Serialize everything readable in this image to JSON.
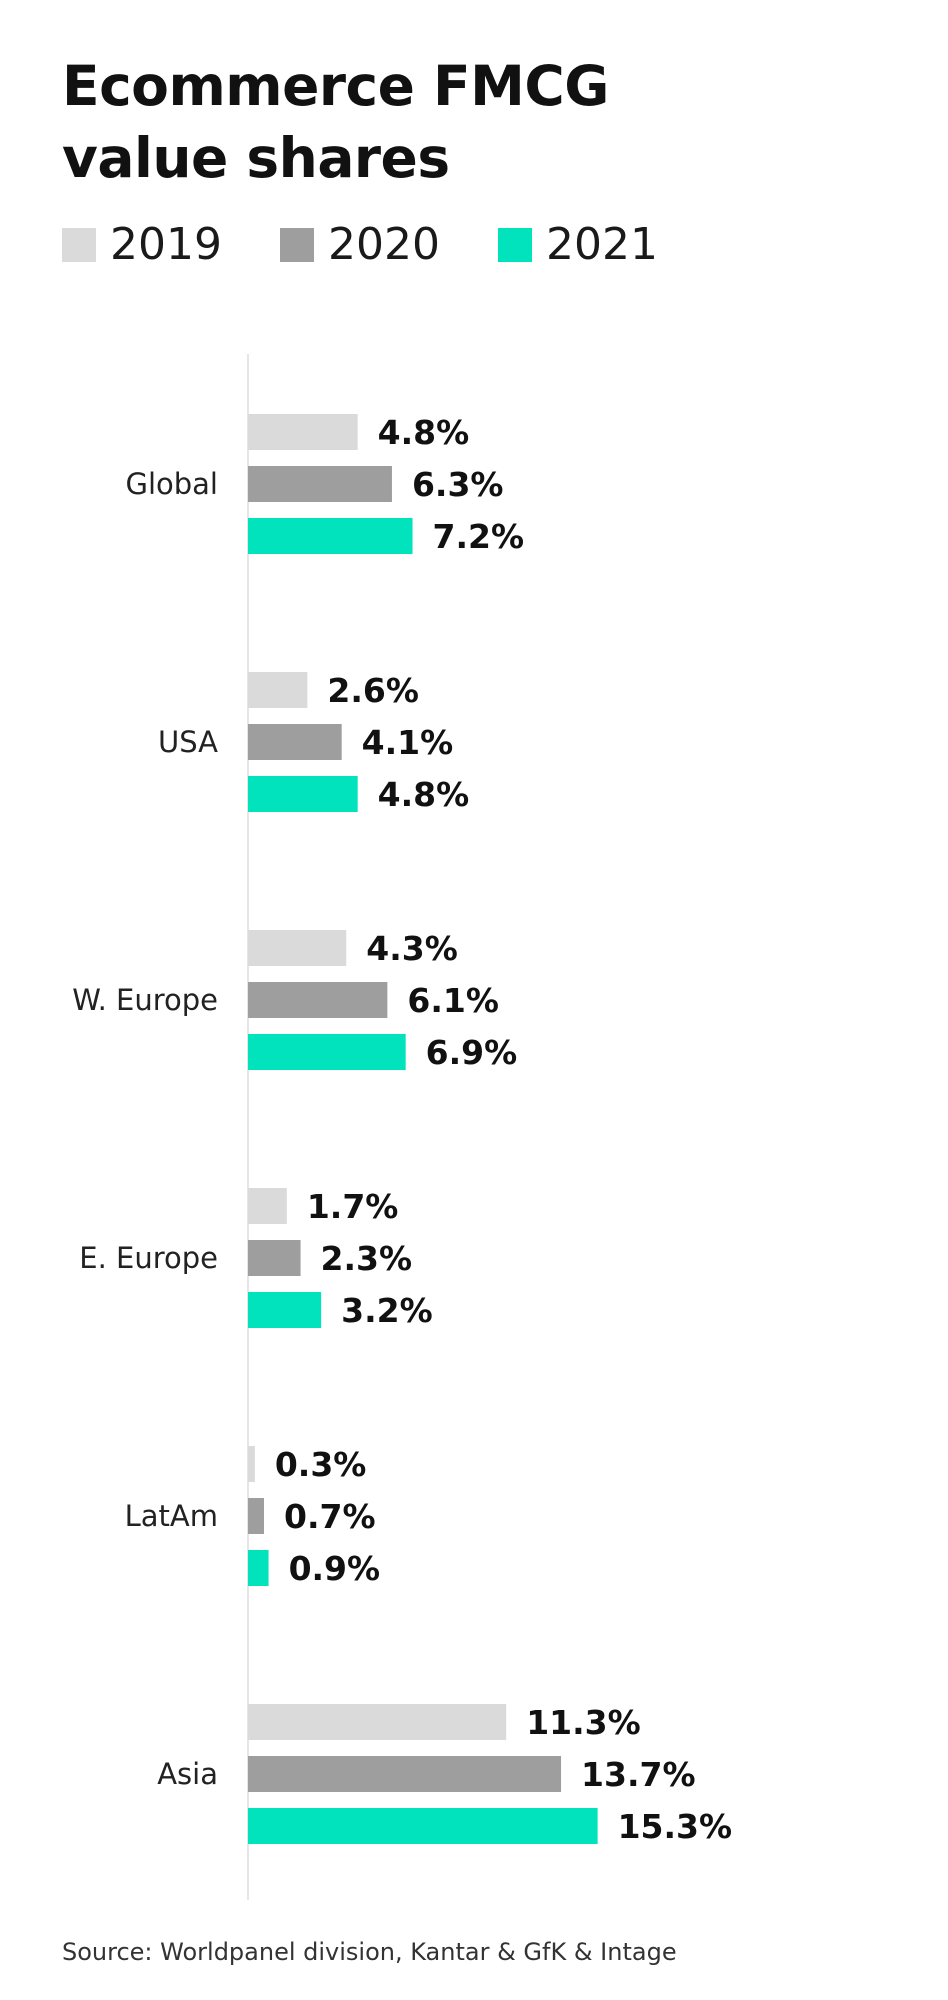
{
  "chart_data": {
    "type": "bar",
    "orientation": "horizontal",
    "title": "Ecommerce FMCG value shares",
    "categories": [
      "Global",
      "USA",
      "W. Europe",
      "E. Europe",
      "LatAm",
      "Asia"
    ],
    "series": [
      {
        "name": "2019",
        "color": "#dadada",
        "values": [
          4.8,
          2.6,
          4.3,
          1.7,
          0.3,
          11.3
        ],
        "labels": [
          "4.8%",
          "2.6%",
          "4.3%",
          "1.7%",
          "0.3%",
          "11.3%"
        ]
      },
      {
        "name": "2020",
        "color": "#9e9e9e",
        "values": [
          6.3,
          4.1,
          6.1,
          2.3,
          0.7,
          13.7
        ],
        "labels": [
          "6.3%",
          "4.1%",
          "6.1%",
          "2.3%",
          "0.7%",
          "13.7%"
        ]
      },
      {
        "name": "2021",
        "color": "#00e3bd",
        "values": [
          7.2,
          4.8,
          6.9,
          3.2,
          0.9,
          15.3
        ],
        "labels": [
          "7.2%",
          "4.8%",
          "6.9%",
          "3.2%",
          "0.9%",
          "15.3%"
        ]
      }
    ],
    "xlim": [
      0,
      17
    ],
    "grid": false,
    "legend_position": "top-left",
    "source": "Source: Worldpanel division, Kantar & GfK & Intage"
  }
}
